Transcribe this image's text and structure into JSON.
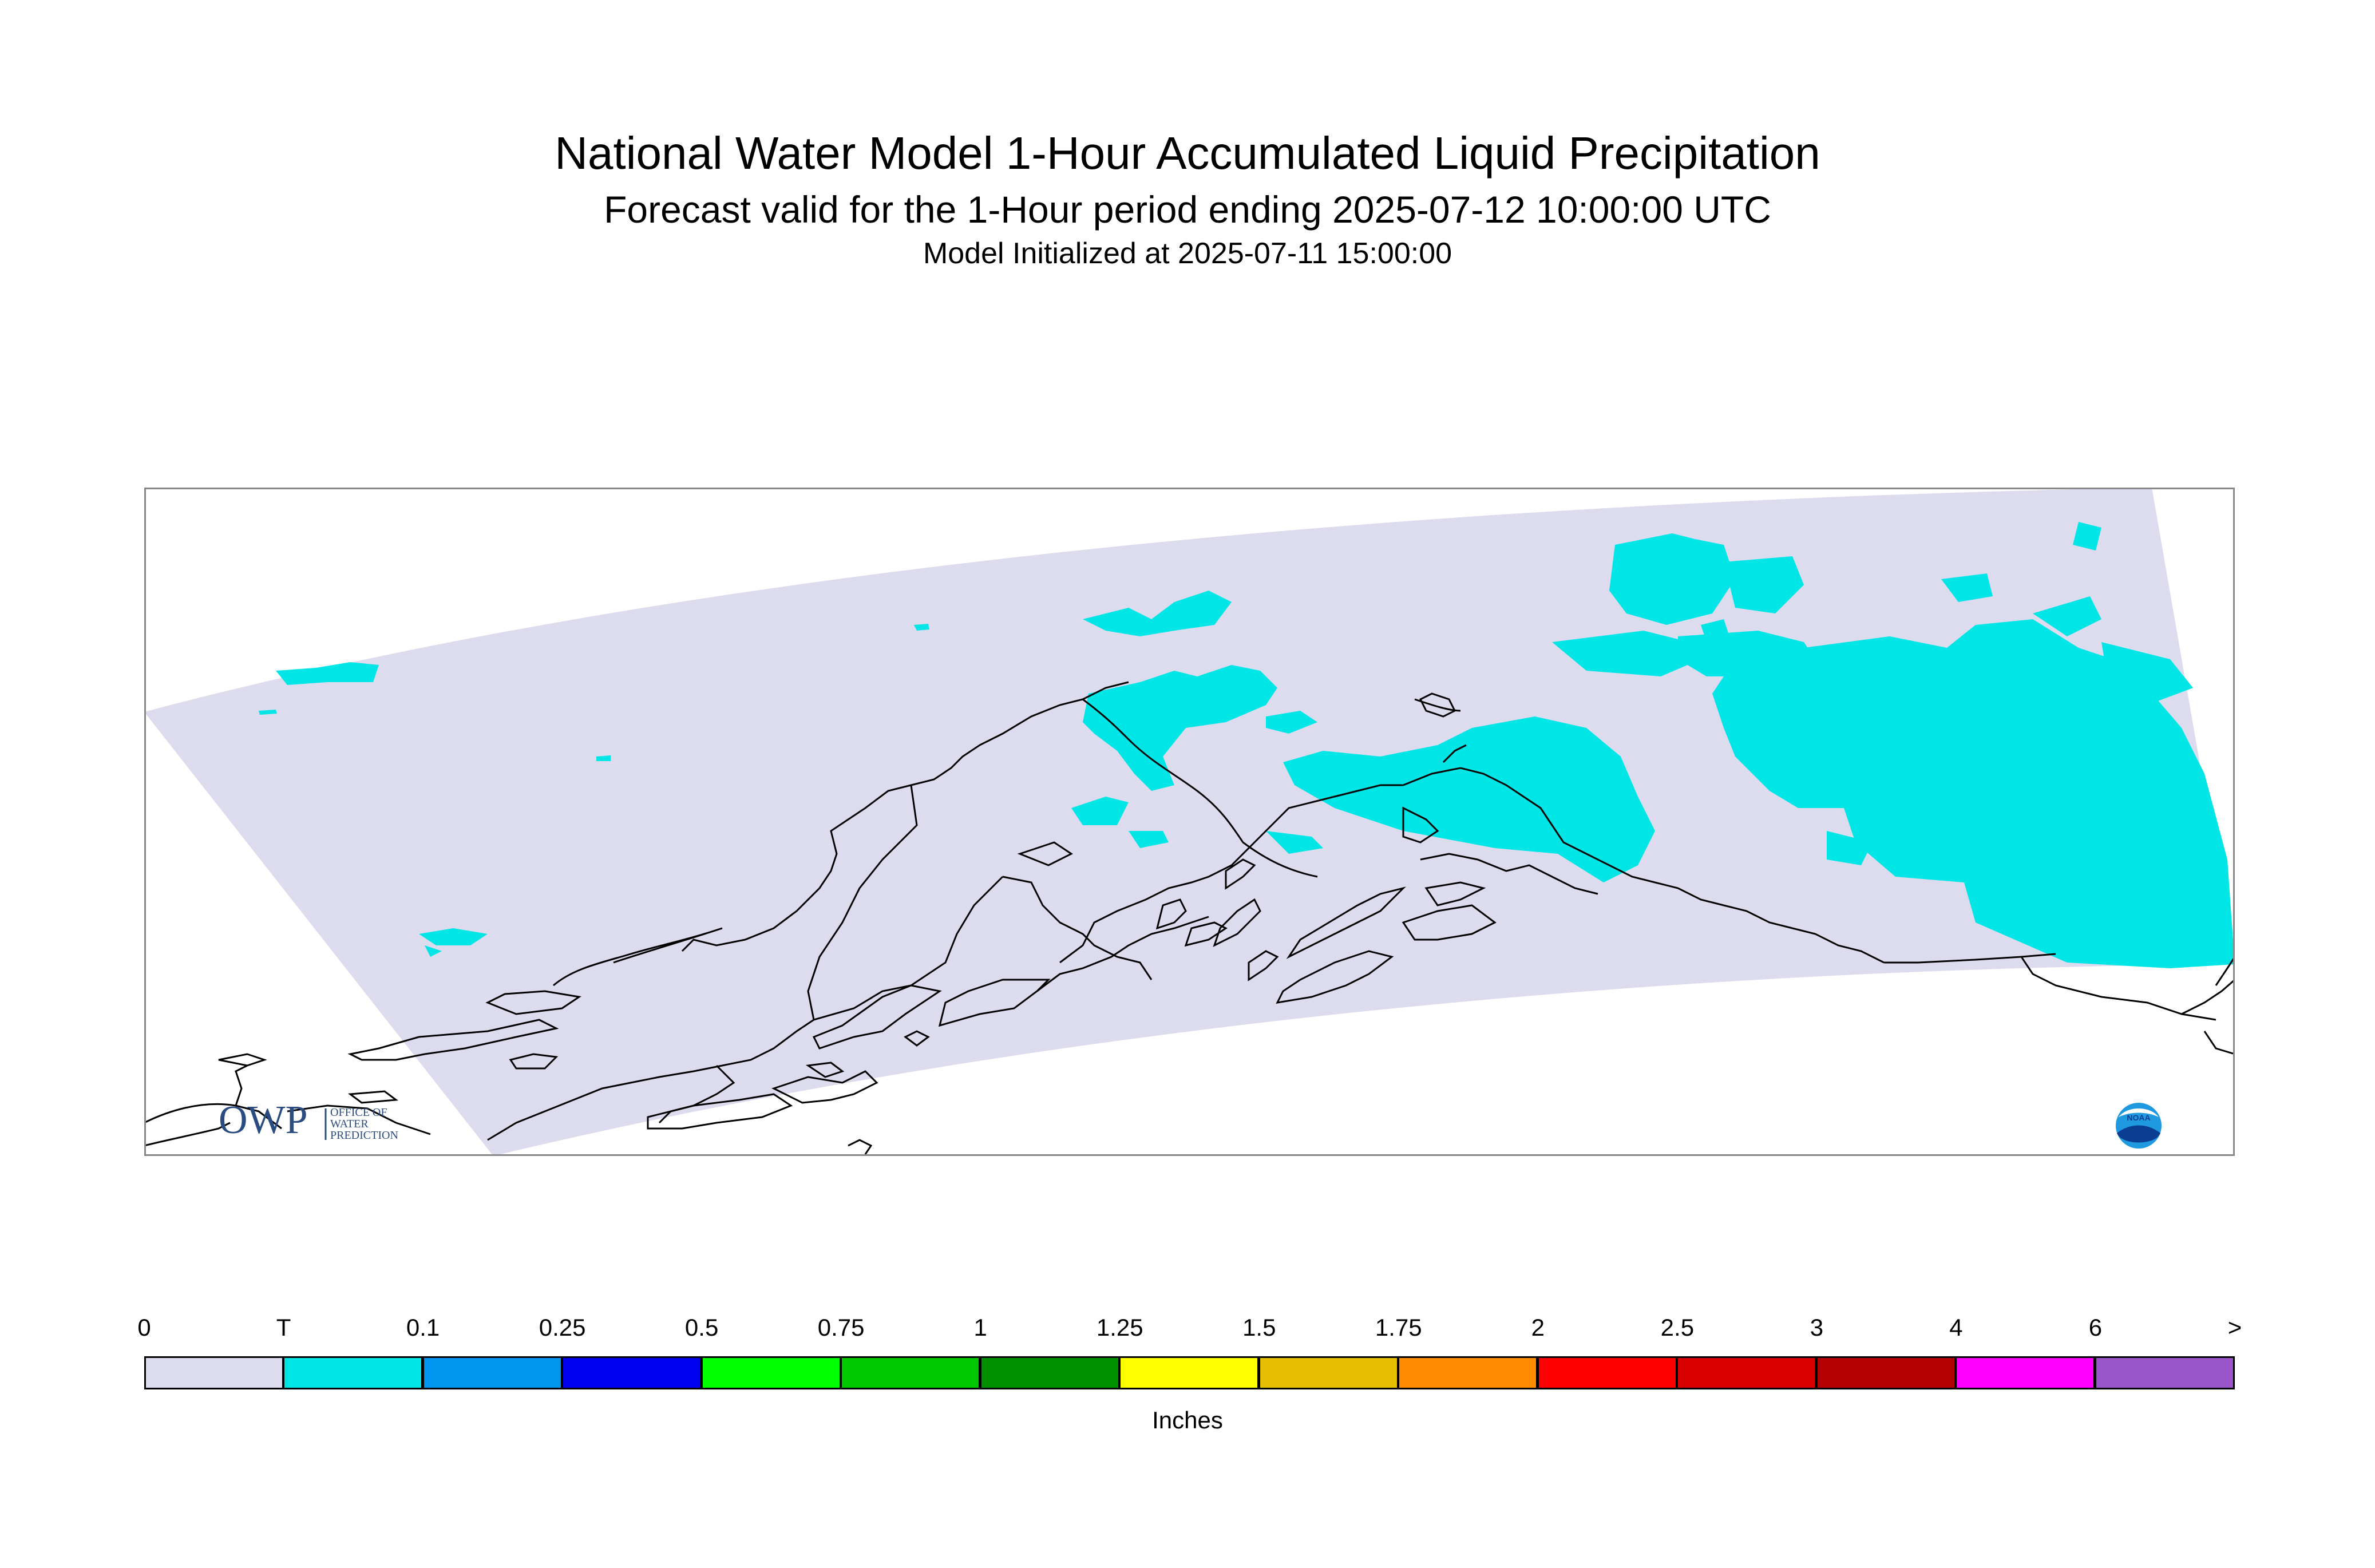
{
  "title": "National Water Model 1-Hour Accumulated Liquid Precipitation",
  "subtitle": "Forecast valid for the 1-Hour period ending 2025-07-12 10:00:00 UTC",
  "init_line": "Model Initialized at 2025-07-11 15:00:00",
  "legend": {
    "units": "Inches",
    "labels": [
      "0",
      "T",
      "0.1",
      "0.25",
      "0.5",
      "0.75",
      "1",
      "1.25",
      "1.5",
      "1.75",
      "2",
      "2.5",
      "3",
      "4",
      "6",
      ">"
    ],
    "colors": [
      "#dcdcee",
      "#00e5e5",
      "#0096f0",
      "#0000f0",
      "#00ff00",
      "#00c800",
      "#009100",
      "#ffff00",
      "#e6c000",
      "#ff8c00",
      "#ff0000",
      "#d90000",
      "#b40000",
      "#ff00ff",
      "#9955c9"
    ]
  },
  "map": {
    "domain_fill": "#dcdcee",
    "precip_color": "#00e5e5",
    "coastline_color": "#000000"
  },
  "logos": {
    "owp_mark": "OWP",
    "owp_text": [
      "OFFICE OF",
      "WATER",
      "PREDICTION"
    ],
    "noaa_text": "NOAA"
  }
}
